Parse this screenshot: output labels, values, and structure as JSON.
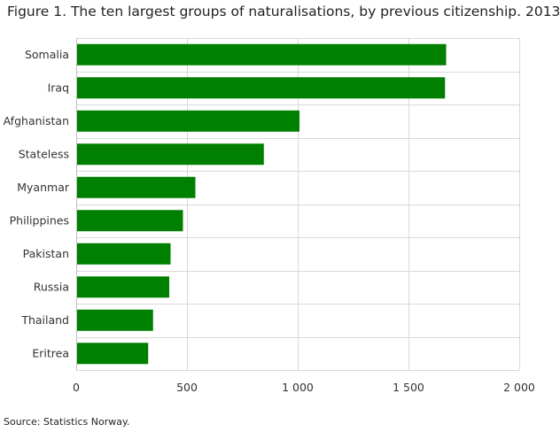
{
  "title": "Figure 1. The ten largest groups of naturalisations, by previous citizenship. 2013",
  "source": "Source: Statistics Norway.",
  "colors": {
    "bar": "#008000",
    "grid": "#d9d9d9",
    "axis": "#bfbfbf",
    "text": "#333333"
  },
  "chart_data": {
    "type": "bar",
    "orientation": "horizontal",
    "categories": [
      "Somalia",
      "Iraq",
      "Afghanistan",
      "Stateless",
      "Myanmar",
      "Philippines",
      "Pakistan",
      "Russia",
      "Thailand",
      "Eritrea"
    ],
    "values": [
      1670,
      1665,
      1008,
      847,
      538,
      482,
      426,
      420,
      347,
      325
    ],
    "xlim": [
      0,
      2000
    ],
    "xticks": [
      0,
      500,
      1000,
      1500,
      2000
    ],
    "xtick_labels": [
      "0",
      "500",
      "1 000",
      "1 500",
      "2 000"
    ],
    "grid": true
  }
}
